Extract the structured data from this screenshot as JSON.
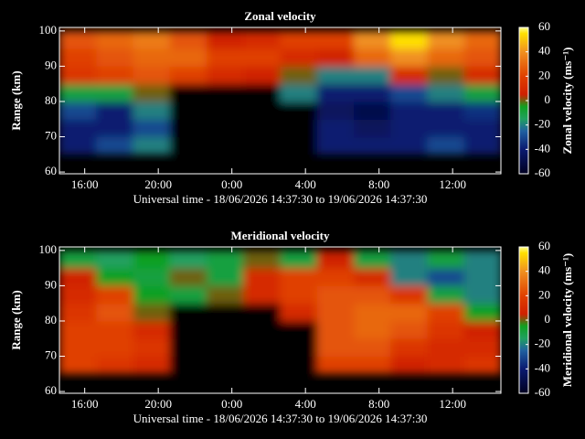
{
  "chart_data": [
    {
      "type": "heatmap",
      "title": "Zonal velocity",
      "xlabel": "Universal time - 18/06/2026 14:37:30 to 19/06/2026 14:37:30",
      "ylabel": "Range (km)",
      "colorbar_label": "Zonal velocity (ms⁻¹)",
      "x": [
        14.625,
        16.625,
        18.625,
        20.625,
        22.625,
        24.625,
        26.625,
        28.625,
        30.625,
        32.625,
        34.625,
        36.625,
        38.625
      ],
      "y": [
        65,
        70,
        75,
        80,
        85,
        90,
        95,
        100
      ],
      "z": [
        [
          -40,
          -30,
          -20,
          null,
          null,
          null,
          null,
          -40,
          -40,
          -40,
          -30,
          -40
        ],
        [
          -40,
          -40,
          -30,
          null,
          null,
          null,
          null,
          -40,
          -45,
          -40,
          -40,
          -40
        ],
        [
          -30,
          -40,
          -20,
          null,
          null,
          null,
          null,
          -45,
          -50,
          -40,
          -40,
          -35
        ],
        [
          -10,
          -10,
          0,
          null,
          null,
          null,
          -20,
          -40,
          -40,
          -30,
          -20,
          -10
        ],
        [
          15,
          20,
          25,
          20,
          10,
          5,
          0,
          -20,
          -20,
          10,
          0,
          10
        ],
        [
          20,
          25,
          30,
          30,
          20,
          20,
          10,
          5,
          30,
          40,
          30,
          25
        ],
        [
          25,
          30,
          35,
          25,
          5,
          10,
          20,
          20,
          40,
          55,
          40,
          30
        ]
      ],
      "xlim": [
        14.625,
        38.625
      ],
      "xticks": [
        {
          "value": 16,
          "label": "16:00"
        },
        {
          "value": 20,
          "label": "20:00"
        },
        {
          "value": 24,
          "label": "0:00"
        },
        {
          "value": 28,
          "label": "4:00"
        },
        {
          "value": 32,
          "label": "8:00"
        },
        {
          "value": 36,
          "label": "12:00"
        }
      ],
      "ylim": [
        59.5,
        101
      ],
      "yticks": [
        60,
        70,
        80,
        90,
        100
      ],
      "zlim": [
        -60,
        60
      ],
      "zticks": [
        -60,
        -40,
        -20,
        0,
        20,
        40,
        60
      ],
      "colorscale": [
        [
          -60,
          "#000020"
        ],
        [
          -40,
          "#0a1a70"
        ],
        [
          -25,
          "#2060a0"
        ],
        [
          -15,
          "#20a060"
        ],
        [
          -5,
          "#10a020"
        ],
        [
          5,
          "#d02000"
        ],
        [
          20,
          "#e04000"
        ],
        [
          40,
          "#f09020"
        ],
        [
          55,
          "#ffe000"
        ],
        [
          60,
          "#ffff90"
        ]
      ]
    },
    {
      "type": "heatmap",
      "title": "Meridional velocity",
      "xlabel": "Universal time - 18/06/2026 14:37:30 to 19/06/2026 14:37:30",
      "ylabel": "Range (km)",
      "colorbar_label": "Meridional velocity (ms⁻¹)",
      "x": [
        14.625,
        16.625,
        18.625,
        20.625,
        22.625,
        24.625,
        26.625,
        28.625,
        30.625,
        32.625,
        34.625,
        36.625,
        38.625
      ],
      "y": [
        65,
        70,
        75,
        80,
        85,
        90,
        95,
        100
      ],
      "z": [
        [
          20,
          15,
          10,
          null,
          null,
          null,
          null,
          20,
          20,
          5,
          10,
          15
        ],
        [
          20,
          20,
          15,
          null,
          null,
          null,
          null,
          25,
          25,
          15,
          10,
          10
        ],
        [
          20,
          20,
          10,
          null,
          null,
          null,
          null,
          25,
          30,
          25,
          15,
          5
        ],
        [
          15,
          25,
          0,
          null,
          null,
          null,
          10,
          25,
          30,
          30,
          20,
          -5
        ],
        [
          10,
          20,
          -5,
          -10,
          0,
          10,
          20,
          25,
          25,
          15,
          -10,
          -20
        ],
        [
          5,
          -5,
          -10,
          0,
          -10,
          10,
          20,
          20,
          10,
          -20,
          -30,
          -20
        ],
        [
          -10,
          -15,
          -5,
          -15,
          -10,
          0,
          -10,
          5,
          -10,
          -20,
          -10,
          -20
        ]
      ],
      "xlim": [
        14.625,
        38.625
      ],
      "xticks": [
        {
          "value": 16,
          "label": "16:00"
        },
        {
          "value": 20,
          "label": "20:00"
        },
        {
          "value": 24,
          "label": "0:00"
        },
        {
          "value": 28,
          "label": "4:00"
        },
        {
          "value": 32,
          "label": "8:00"
        },
        {
          "value": 36,
          "label": "12:00"
        }
      ],
      "ylim": [
        59.5,
        101
      ],
      "yticks": [
        60,
        70,
        80,
        90,
        100
      ],
      "zlim": [
        -60,
        60
      ],
      "zticks": [
        -60,
        -40,
        -20,
        0,
        20,
        40,
        60
      ],
      "colorscale": [
        [
          -60,
          "#000020"
        ],
        [
          -40,
          "#0a1a70"
        ],
        [
          -25,
          "#2060a0"
        ],
        [
          -15,
          "#20a060"
        ],
        [
          -5,
          "#10a020"
        ],
        [
          5,
          "#d02000"
        ],
        [
          20,
          "#e04000"
        ],
        [
          40,
          "#f09020"
        ],
        [
          55,
          "#ffe000"
        ],
        [
          60,
          "#ffff90"
        ]
      ]
    }
  ]
}
